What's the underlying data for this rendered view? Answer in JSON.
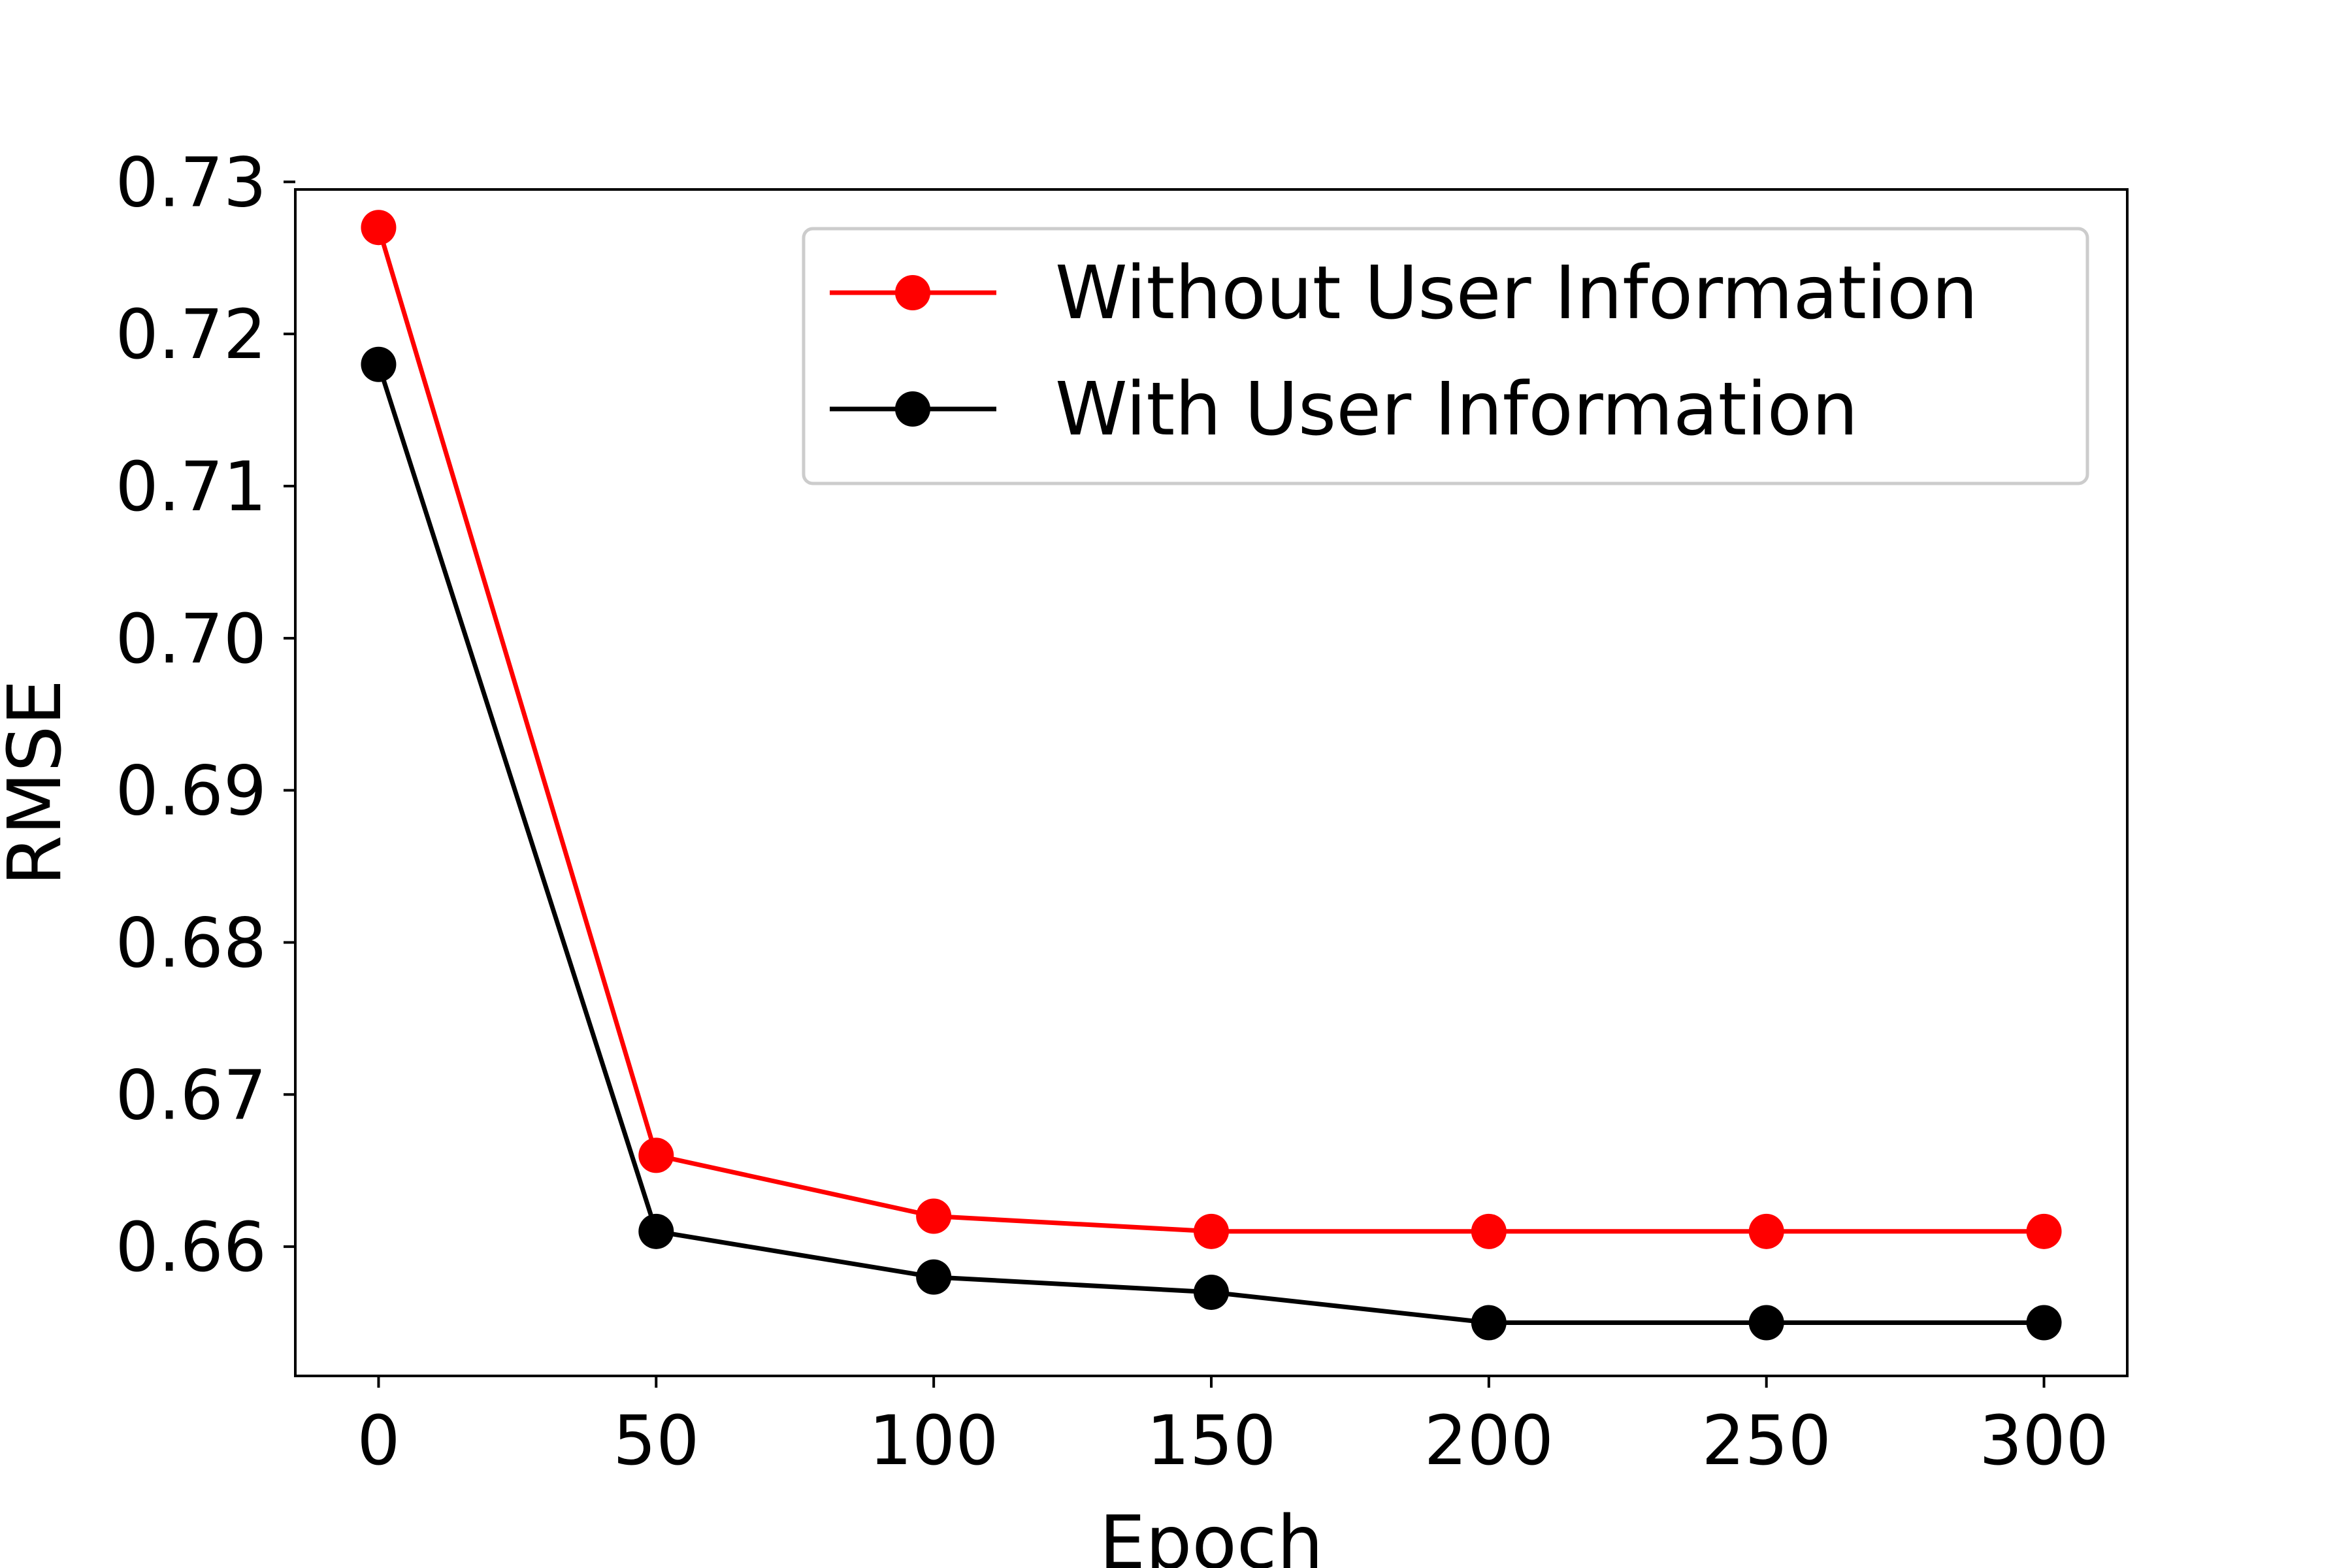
{
  "chart_data": {
    "type": "line",
    "title": "",
    "xlabel": "Epoch",
    "ylabel": "RMSE",
    "xlim": [
      -15,
      315
    ],
    "ylim": [
      0.6515,
      0.7295
    ],
    "x_ticks": [
      0,
      50,
      100,
      150,
      200,
      250,
      300
    ],
    "x_tick_labels": [
      "0",
      "50",
      "100",
      "150",
      "200",
      "250",
      "300"
    ],
    "y_ticks": [
      0.66,
      0.67,
      0.68,
      0.69,
      0.7,
      0.71,
      0.72,
      0.73
    ],
    "y_tick_labels": [
      "0.66",
      "0.67",
      "0.68",
      "0.69",
      "0.70",
      "0.71",
      "0.72",
      "0.73"
    ],
    "grid": false,
    "legend_position": "top-right",
    "x": [
      0,
      50,
      100,
      150,
      200,
      250,
      300
    ],
    "series": [
      {
        "name": "Without User Information",
        "color": "#ff0000",
        "marker": "circle",
        "values": [
          0.727,
          0.666,
          0.662,
          0.661,
          0.661,
          0.661,
          0.661
        ]
      },
      {
        "name": "With User Information",
        "color": "#000000",
        "marker": "circle",
        "values": [
          0.718,
          0.661,
          0.658,
          0.657,
          0.655,
          0.655,
          0.655
        ]
      }
    ]
  }
}
